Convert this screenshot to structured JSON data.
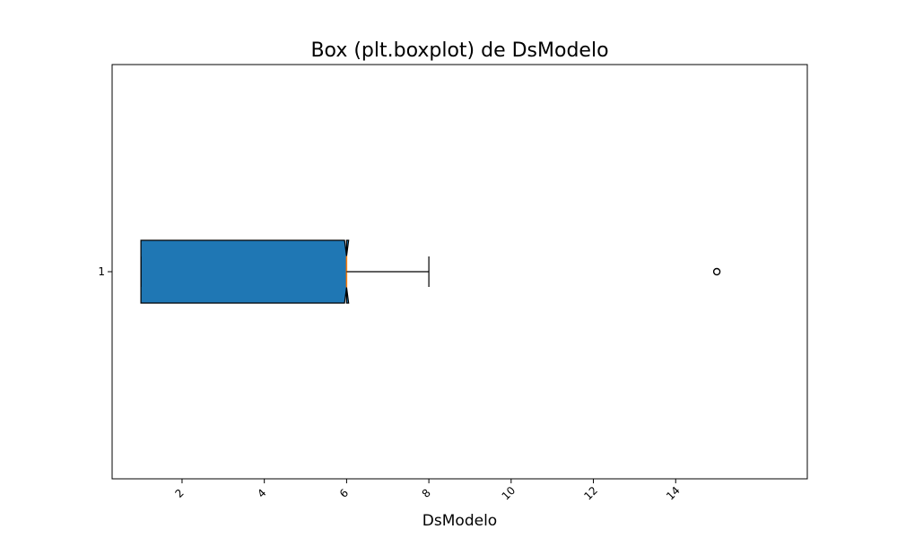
{
  "chart_data": {
    "type": "boxplot",
    "orientation": "horizontal",
    "title": "Box (plt.boxplot) de DsModelo",
    "xlabel": "DsModelo",
    "ylabel": "",
    "xlim": [
      0.3,
      17.2
    ],
    "xticks": [
      2,
      4,
      6,
      8,
      10,
      12,
      14
    ],
    "xtick_rotation": 45,
    "categories": [
      "1"
    ],
    "notched": true,
    "patch_artist": true,
    "grid": false,
    "series": [
      {
        "category": "1",
        "whislo": 1,
        "q1": 1,
        "median": 6,
        "q3": 6,
        "whishi": 8,
        "notch_low": 5.95,
        "notch_high": 6.05,
        "fliers": [
          15
        ]
      }
    ],
    "colors": {
      "box_fill": "#1f77b4",
      "box_edge": "#000000",
      "median": "#ff7f0e",
      "whisker": "#000000",
      "flier": "#000000"
    }
  }
}
